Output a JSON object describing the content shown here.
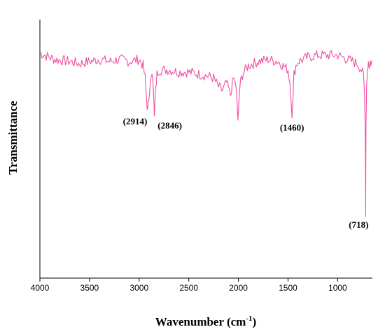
{
  "chart_data": {
    "type": "line",
    "title": "",
    "xlabel": "Wavenumber (cm",
    "xlabel_superscript": "-1",
    "xlabel_suffix": ")",
    "ylabel": "Transmittance",
    "xlim": [
      4000,
      650
    ],
    "x_reversed": true,
    "x_ticks": [
      4000,
      3500,
      3000,
      2500,
      2000,
      1500,
      1000
    ],
    "ylim": [
      0,
      100
    ],
    "y_ticks_shown": false,
    "grid": false,
    "legend": "none",
    "series": [
      {
        "color": "#f04fa3",
        "x": [
          4000,
          3850,
          3700,
          3600,
          3500,
          3400,
          3300,
          3200,
          3100,
          3000,
          2960,
          2940,
          2925,
          2914,
          2905,
          2890,
          2870,
          2858,
          2846,
          2835,
          2820,
          2800,
          2700,
          2600,
          2500,
          2400,
          2300,
          2250,
          2200,
          2160,
          2120,
          2080,
          2050,
          2030,
          2015,
          2005,
          1995,
          1985,
          1970,
          1950,
          1930,
          1900,
          1850,
          1800,
          1700,
          1600,
          1550,
          1500,
          1480,
          1470,
          1460,
          1450,
          1440,
          1420,
          1400,
          1300,
          1200,
          1100,
          1000,
          950,
          900,
          850,
          800,
          760,
          740,
          730,
          722,
          718,
          714,
          708,
          700,
          690,
          680,
          670,
          660,
          650
        ],
        "y": [
          88,
          85,
          84,
          83,
          84,
          85,
          84,
          85,
          84,
          85,
          82,
          76,
          66,
          60,
          66,
          74,
          77,
          72,
          58,
          70,
          78,
          80,
          80,
          79,
          79,
          78,
          77,
          76,
          72,
          70,
          74,
          68,
          76,
          74,
          66,
          56,
          64,
          72,
          76,
          79,
          80,
          82,
          83,
          84,
          85,
          84,
          82,
          80,
          74,
          66,
          57,
          68,
          78,
          82,
          84,
          86,
          87,
          87,
          87,
          86,
          85,
          84,
          83,
          80,
          77,
          70,
          50,
          10,
          55,
          74,
          80,
          84,
          82,
          84,
          83,
          84
        ]
      }
    ],
    "annotations": [
      {
        "text": "(2914)",
        "x": 2914,
        "y": 60
      },
      {
        "text": "(2846)",
        "x": 2846,
        "y": 58
      },
      {
        "text": "(1460)",
        "x": 1460,
        "y": 57
      },
      {
        "text": "(718)",
        "x": 718,
        "y": 10
      }
    ]
  }
}
